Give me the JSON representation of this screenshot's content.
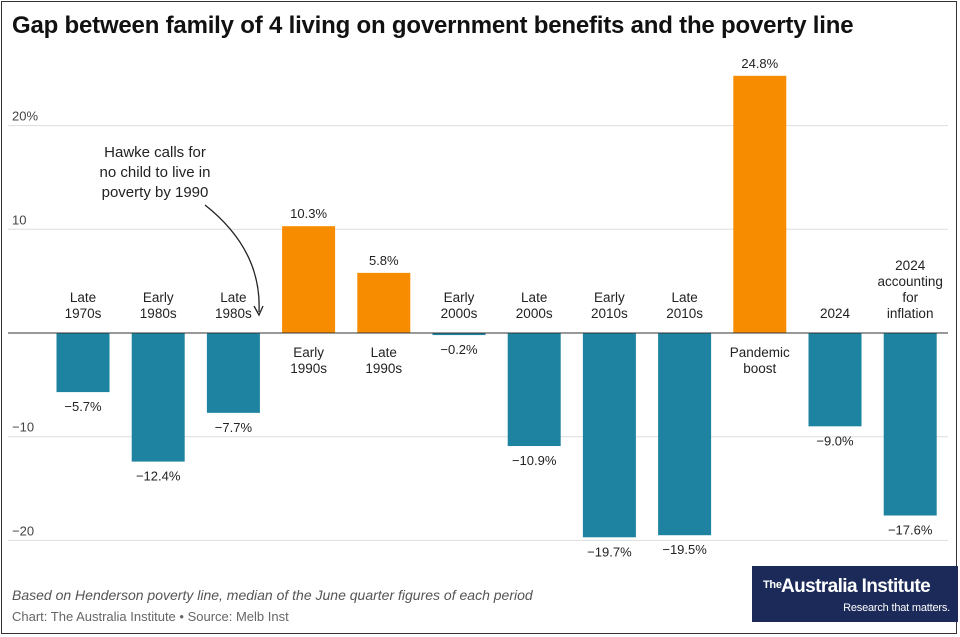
{
  "title": "Gap between family of 4 living on government benefits and the poverty line",
  "note": "Based on Henderson poverty line, median of the June quarter figures of each period",
  "source": "Chart: The Australia Institute • Source: Melb Inst",
  "logo": {
    "the": "The",
    "name": "Australia Institute",
    "tagline": "Research that matters."
  },
  "annotation": {
    "lines": [
      "Hawke calls for",
      "no child to live in",
      "poverty by 1990"
    ]
  },
  "colors": {
    "negative": "#1e83a0",
    "positive": "#f78c00",
    "grid": "#dddddd",
    "zero_line": "#333333"
  },
  "chart_data": {
    "type": "bar",
    "categories": [
      [
        "Late",
        "1970s"
      ],
      [
        "Early",
        "1980s"
      ],
      [
        "Late",
        "1980s"
      ],
      [
        "Early",
        "1990s"
      ],
      [
        "Late",
        "1990s"
      ],
      [
        "Early",
        "2000s"
      ],
      [
        "Late",
        "2000s"
      ],
      [
        "Early",
        "2010s"
      ],
      [
        "Late",
        "2010s"
      ],
      [
        "Pandemic",
        "boost"
      ],
      [
        "2024"
      ],
      [
        "2024",
        "accounting",
        "for",
        "inflation"
      ]
    ],
    "values": [
      -5.7,
      -12.4,
      -7.7,
      10.3,
      5.8,
      -0.2,
      -10.9,
      -19.7,
      -19.5,
      24.8,
      -9.0,
      -17.6
    ],
    "data_labels": [
      "−5.7%",
      "−12.4%",
      "−7.7%",
      "10.3%",
      "5.8%",
      "−0.2%",
      "−10.9%",
      "−19.7%",
      "−19.5%",
      "24.8%",
      "−9.0%",
      "−17.6%"
    ],
    "y_ticks": [
      -20,
      -10,
      10,
      20
    ],
    "y_tick_labels": [
      "−20",
      "−10",
      "10",
      "20%"
    ],
    "ylim": [
      -20.5,
      24.8
    ],
    "grid": true
  }
}
